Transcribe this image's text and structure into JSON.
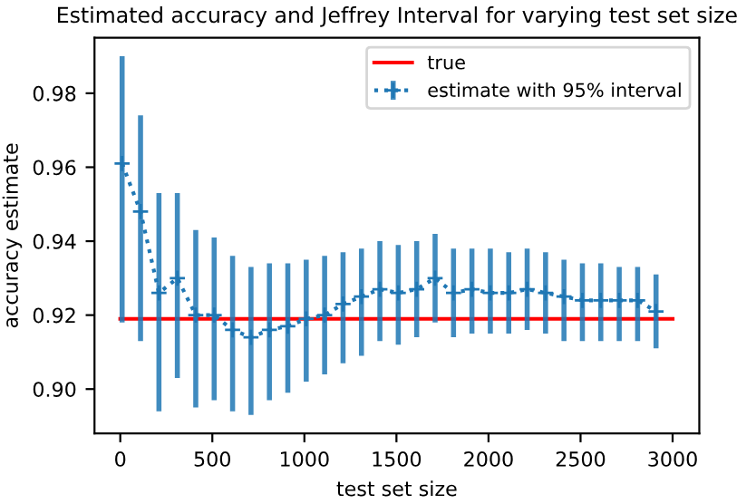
{
  "chart_data": {
    "type": "line",
    "title": "Estimated accuracy and Jeffrey Interval for varying test set size",
    "xlabel": "test set size",
    "ylabel": "accuracy estimate",
    "xlim": [
      -140,
      3145
    ],
    "ylim": [
      0.888,
      0.995
    ],
    "xticks": [
      0,
      500,
      1000,
      1500,
      2000,
      2500,
      3000
    ],
    "yticks": [
      {
        "value": 0.9,
        "label": "0.90"
      },
      0.92,
      0.94,
      0.96,
      0.98
    ],
    "grid": false,
    "legend": "top right",
    "series": [
      {
        "name": "true",
        "color": "#ff0000",
        "line_style": "solid",
        "marker": "none",
        "x": [
          0,
          3000
        ],
        "values": [
          0.919,
          0.919
        ]
      },
      {
        "name": "estimate with 95% interval",
        "color": "#1f77b4",
        "line_style": "dotted",
        "marker": "cross",
        "x": [
          10,
          110,
          210,
          310,
          410,
          510,
          610,
          710,
          810,
          910,
          1010,
          1110,
          1210,
          1310,
          1410,
          1510,
          1610,
          1710,
          1810,
          1910,
          2010,
          2110,
          2210,
          2310,
          2410,
          2510,
          2610,
          2710,
          2810,
          2910
        ],
        "values": [
          0.961,
          0.948,
          0.926,
          0.93,
          0.92,
          0.92,
          0.916,
          0.914,
          0.916,
          0.917,
          0.919,
          0.92,
          0.923,
          0.925,
          0.927,
          0.926,
          0.927,
          0.93,
          0.926,
          0.927,
          0.926,
          0.926,
          0.927,
          0.926,
          0.925,
          0.924,
          0.924,
          0.924,
          0.924,
          0.921
        ],
        "errors": [
          [
            0.918,
            0.99
          ],
          [
            0.913,
            0.974
          ],
          [
            0.894,
            0.953
          ],
          [
            0.903,
            0.953
          ],
          [
            0.895,
            0.943
          ],
          [
            0.897,
            0.941
          ],
          [
            0.894,
            0.936
          ],
          [
            0.893,
            0.933
          ],
          [
            0.897,
            0.934
          ],
          [
            0.899,
            0.934
          ],
          [
            0.902,
            0.935
          ],
          [
            0.904,
            0.936
          ],
          [
            0.907,
            0.937
          ],
          [
            0.909,
            0.938
          ],
          [
            0.913,
            0.94
          ],
          [
            0.912,
            0.939
          ],
          [
            0.914,
            0.94
          ],
          [
            0.918,
            0.942
          ],
          [
            0.914,
            0.938
          ],
          [
            0.915,
            0.938
          ],
          [
            0.915,
            0.938
          ],
          [
            0.915,
            0.937
          ],
          [
            0.916,
            0.938
          ],
          [
            0.915,
            0.937
          ],
          [
            0.913,
            0.935
          ],
          [
            0.913,
            0.934
          ],
          [
            0.913,
            0.934
          ],
          [
            0.913,
            0.933
          ],
          [
            0.913,
            0.933
          ],
          [
            0.911,
            0.931
          ]
        ]
      }
    ]
  }
}
